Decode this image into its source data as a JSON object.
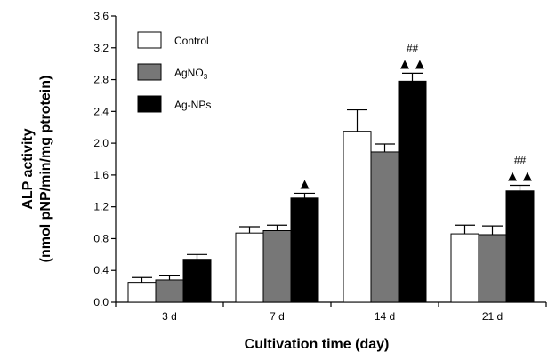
{
  "chart_data": {
    "type": "bar",
    "title": "",
    "xlabel": "Cultivation time (day)",
    "ylabel_line1": "ALP activity",
    "ylabel_line2": "(nmol pNP/min/mg ptrotein)",
    "categories": [
      "3 d",
      "7 d",
      "14 d",
      "21 d"
    ],
    "ylim": [
      0,
      3.6
    ],
    "yticks": [
      "0.0",
      "0.4",
      "0.8",
      "1.2",
      "1.6",
      "2.0",
      "2.4",
      "2.8",
      "3.2",
      "3.6"
    ],
    "grid": false,
    "legend_position": "top-left",
    "series": [
      {
        "name": "Control",
        "legend_main": "Control",
        "legend_sub": "",
        "color": "#ffffff",
        "values": [
          0.25,
          0.87,
          2.15,
          0.86
        ],
        "errors": [
          0.06,
          0.08,
          0.27,
          0.11
        ]
      },
      {
        "name": "AgNO3",
        "legend_main": "AgNO",
        "legend_sub": "3",
        "color": "#777777",
        "values": [
          0.28,
          0.9,
          1.89,
          0.85
        ],
        "errors": [
          0.06,
          0.07,
          0.1,
          0.11
        ]
      },
      {
        "name": "Ag-NPs",
        "legend_main": "Ag-NPs",
        "legend_sub": "",
        "color": "#000000",
        "values": [
          0.54,
          1.31,
          2.78,
          1.4
        ],
        "errors": [
          0.06,
          0.06,
          0.1,
          0.07
        ]
      }
    ],
    "annotations": [
      {
        "category_index": 1,
        "symbol": "▲",
        "hash": ""
      },
      {
        "category_index": 2,
        "symbol": "▲▲",
        "hash": "##"
      },
      {
        "category_index": 3,
        "symbol": "▲▲",
        "hash": "##"
      }
    ]
  }
}
